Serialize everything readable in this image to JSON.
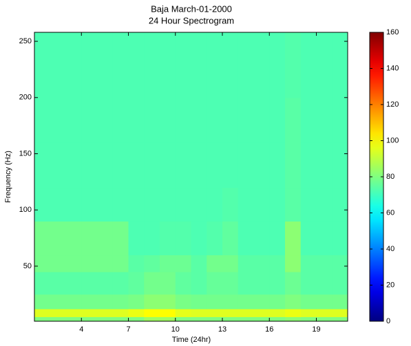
{
  "chart_data": {
    "type": "heatmap",
    "title": "Baja March-01-2000",
    "subtitle": "24 Hour Spectrogram",
    "x_label": "Time (24hr)",
    "y_label": "Frequency (Hz)",
    "x_bins": [
      1,
      2,
      3,
      4,
      5,
      6,
      7,
      8,
      9,
      10,
      11,
      12,
      13,
      14,
      15,
      16,
      17,
      18,
      19,
      20,
      21
    ],
    "y_bins": [
      1,
      5,
      12,
      25,
      45,
      60,
      90,
      120,
      160,
      200,
      258
    ],
    "z": [
      [
        80,
        80,
        80,
        80,
        80,
        80,
        80,
        85,
        85,
        80,
        80,
        80,
        80,
        80,
        80,
        80,
        82,
        80,
        80,
        80
      ],
      [
        95,
        95,
        95,
        95,
        95,
        95,
        97,
        100,
        100,
        96,
        95,
        95,
        95,
        95,
        95,
        95,
        97,
        95,
        95,
        95
      ],
      [
        78,
        78,
        78,
        78,
        78,
        78,
        79,
        82,
        82,
        79,
        78,
        78,
        78,
        78,
        78,
        78,
        80,
        78,
        78,
        78
      ],
      [
        74,
        74,
        74,
        74,
        74,
        74,
        75,
        78,
        78,
        75,
        74,
        76,
        76,
        74,
        74,
        74,
        77,
        74,
        74,
        74
      ],
      [
        78,
        78,
        78,
        78,
        78,
        78,
        74,
        75,
        77,
        77,
        74,
        78,
        78,
        74,
        74,
        74,
        82,
        74,
        74,
        74
      ],
      [
        78,
        78,
        78,
        78,
        78,
        78,
        72,
        72,
        73,
        73,
        72,
        73,
        75,
        72,
        72,
        72,
        82,
        72,
        72,
        72
      ],
      [
        72,
        72,
        72,
        72,
        72,
        72,
        72,
        72,
        72,
        72,
        72,
        72,
        73,
        72,
        72,
        72,
        74,
        72,
        72,
        72
      ],
      [
        72,
        72,
        72,
        72,
        72,
        72,
        72,
        72,
        72,
        72,
        72,
        72,
        72,
        72,
        72,
        72,
        74,
        72,
        72,
        72
      ],
      [
        72,
        72,
        72,
        72,
        72,
        72,
        72,
        72,
        72,
        72,
        72,
        72,
        72,
        72,
        72,
        72,
        74,
        72,
        72,
        72
      ],
      [
        72,
        72,
        72,
        72,
        72,
        72,
        72,
        72,
        72,
        72,
        72,
        72,
        72,
        72,
        72,
        72,
        73,
        72,
        72,
        72
      ]
    ],
    "colormap": "jet",
    "xlim": [
      1,
      21
    ],
    "ylim": [
      1,
      258
    ],
    "clim": [
      0,
      160
    ],
    "xticks": [
      4,
      7,
      10,
      13,
      16,
      19
    ],
    "yticks": [
      50,
      100,
      150,
      200,
      250
    ],
    "cticks": [
      0,
      20,
      40,
      60,
      80,
      100,
      120,
      140,
      160
    ]
  }
}
